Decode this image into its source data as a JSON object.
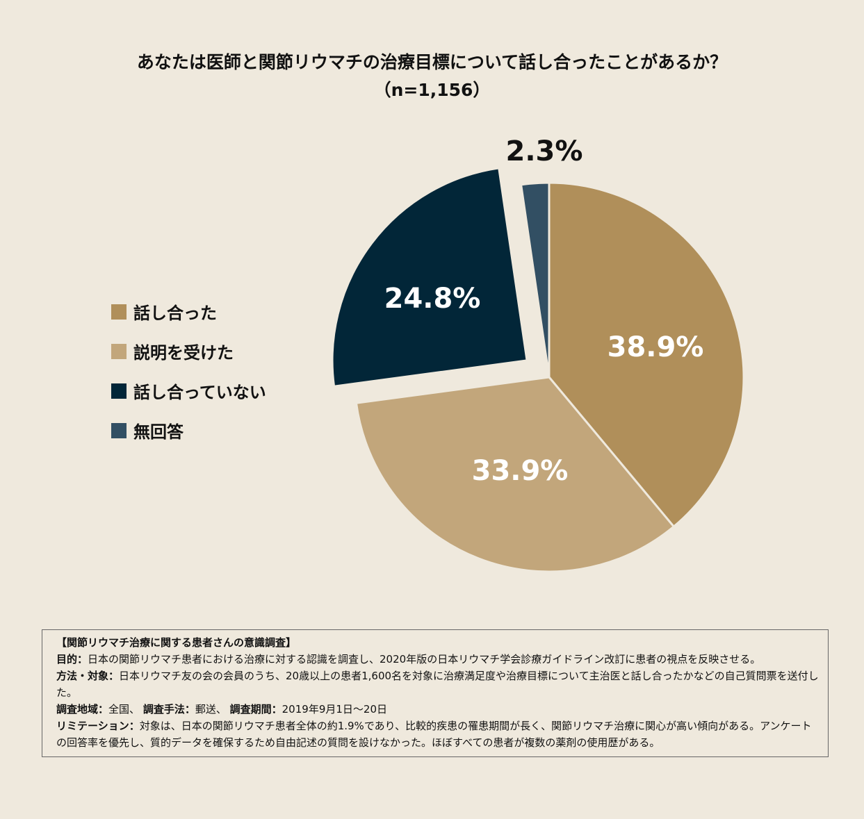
{
  "title_line1": "あなたは医師と関節リウマチの治療目標について話し合ったことがあるか？",
  "title_line2": "（n=1,156）",
  "chart_data": {
    "type": "pie",
    "title": "あなたは医師と関節リウマチの治療目標について話し合ったことがあるか？（n=1,156）",
    "start": "12 o'clock, clockwise",
    "legend_position": "left",
    "slices": [
      {
        "name": "話し合った",
        "value": 38.9,
        "label": "38.9%",
        "color": "#b08f5a",
        "exploded": false
      },
      {
        "name": "説明を受けた",
        "value": 33.9,
        "label": "33.9%",
        "color": "#c2a67b",
        "exploded": false
      },
      {
        "name": "話し合っていない",
        "value": 24.8,
        "label": "24.8%",
        "color": "#022638",
        "exploded": true
      },
      {
        "name": "無回答",
        "value": 2.3,
        "label": "2.3%",
        "color": "#324f63",
        "exploded": false
      }
    ]
  },
  "note": {
    "heading": "【関節リウマチ治療に関する患者さんの意識調査】",
    "purpose_label": "目的：",
    "purpose": "日本の関節リウマチ患者における治療に対する認識を調査し、2020年版の日本リウマチ学会診療ガイドライン改訂に患者の視点を反映させる。",
    "method_label": "方法・対象：",
    "method": "日本リウマチ友の会の会員のうち、20歳以上の患者1,600名を対象に治療満足度や治療目標について主治医と話し合ったかなどの自己質問票を送付した。",
    "area_label": "調査地域：",
    "area": "全国、",
    "technique_label": "調査手法：",
    "technique": "郵送、",
    "period_label": "調査期間：",
    "period": "2019年9月1日〜20日",
    "limitation_label": "リミテーション：",
    "limitation": "対象は、日本の関節リウマチ患者全体の約1.9%であり、比較的疾患の罹患期間が長く、関節リウマチ治療に関心が高い傾向がある。アンケートの回答率を優先し、質的データを確保するため自由記述の質問を設けなかった。ほぼすべての患者が複数の薬剤の使用歴がある。"
  }
}
